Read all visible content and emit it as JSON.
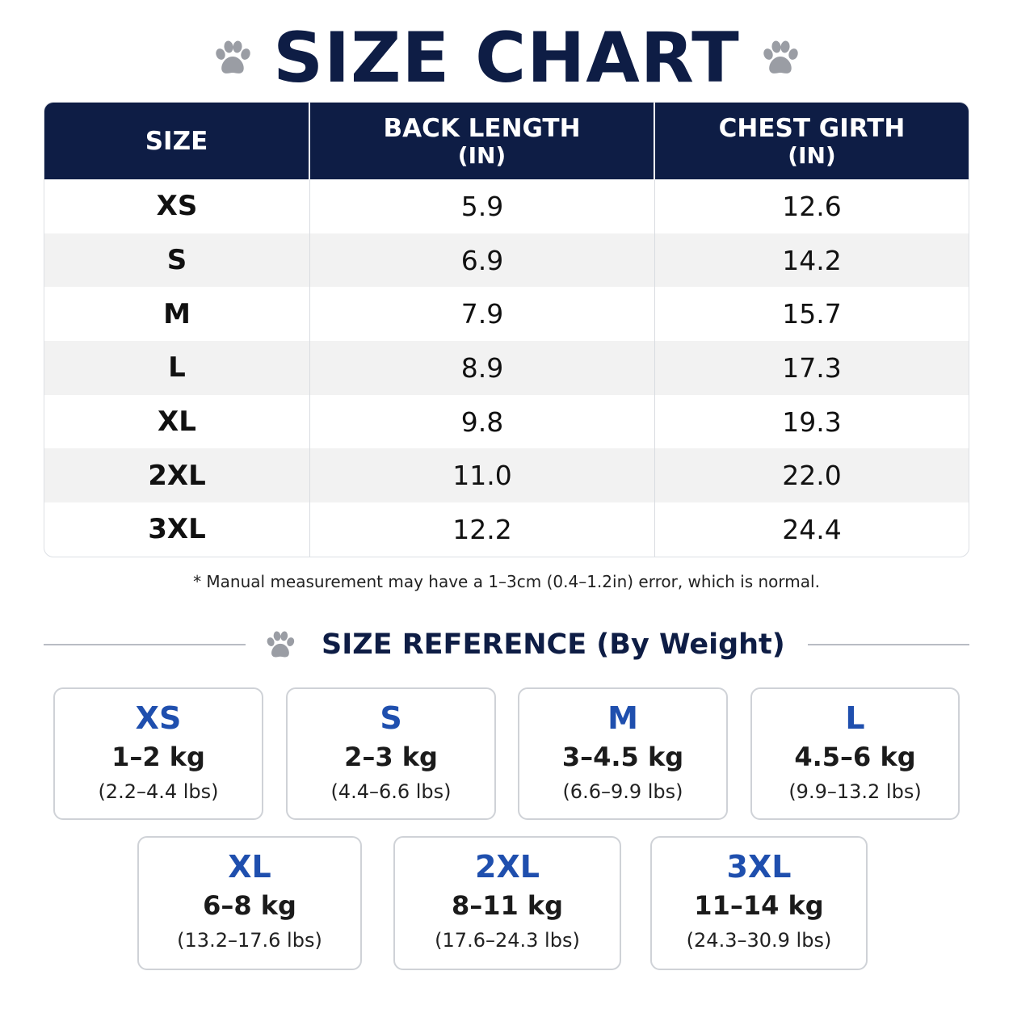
{
  "title": "SIZE CHART",
  "table": {
    "headers": {
      "size": "SIZE",
      "back_length": "BACK LENGTH",
      "back_length_unit": "(IN)",
      "chest_girth": "CHEST GIRTH",
      "chest_girth_unit": "(IN)"
    },
    "rows": [
      {
        "size": "XS",
        "back": "5.9",
        "chest": "12.6"
      },
      {
        "size": "S",
        "back": "6.9",
        "chest": "14.2"
      },
      {
        "size": "M",
        "back": "7.9",
        "chest": "15.7"
      },
      {
        "size": "L",
        "back": "8.9",
        "chest": "17.3"
      },
      {
        "size": "XL",
        "back": "9.8",
        "chest": "19.3"
      },
      {
        "size": "2XL",
        "back": "11.0",
        "chest": "22.0"
      },
      {
        "size": "3XL",
        "back": "12.2",
        "chest": "24.4"
      }
    ]
  },
  "note": "* Manual measurement may have a 1–3cm (0.4–1.2in) error, which is normal.",
  "reference": {
    "title": "SIZE REFERENCE (By Weight)",
    "cards": [
      {
        "size": "XS",
        "kg": "1–2 kg",
        "lbs": "(2.2–4.4 lbs)"
      },
      {
        "size": "S",
        "kg": "2–3 kg",
        "lbs": "(4.4–6.6 lbs)"
      },
      {
        "size": "M",
        "kg": "3–4.5 kg",
        "lbs": "(6.6–9.9 lbs)"
      },
      {
        "size": "L",
        "kg": "4.5–6 kg",
        "lbs": "(9.9–13.2 lbs)"
      },
      {
        "size": "XL",
        "kg": "6–8 kg",
        "lbs": "(13.2–17.6 lbs)"
      },
      {
        "size": "2XL",
        "kg": "8–11 kg",
        "lbs": "(17.6–24.3 lbs)"
      },
      {
        "size": "3XL",
        "kg": "11–14 kg",
        "lbs": "(24.3–30.9 lbs)"
      }
    ]
  },
  "colors": {
    "navy": "#0e1d45",
    "accent_blue": "#1f4fae",
    "paw_gray": "#9a9da4",
    "row_stripe": "#f2f2f2"
  },
  "icons": {
    "title_left": "paw-icon",
    "title_right": "paw-icon",
    "reference": "paw-icon"
  }
}
